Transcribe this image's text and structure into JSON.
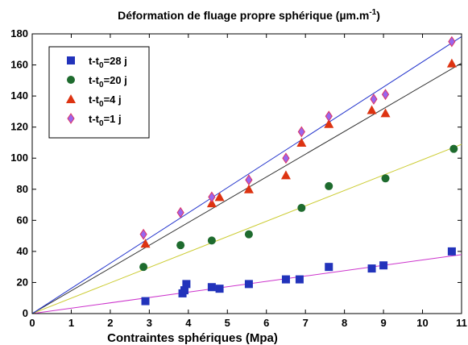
{
  "chart_data": {
    "type": "scatter",
    "title": "Déformation de fluage propre sphérique (µm.m",
    "title_sup": "-1",
    "title_end": ")",
    "xlabel": "Contraintes sphériques (Mpa)",
    "ylabel": "",
    "xlim": [
      0,
      11
    ],
    "ylim": [
      0,
      180
    ],
    "xticks": [
      "0",
      "1",
      "2",
      "3",
      "4",
      "5",
      "6",
      "7",
      "8",
      "9",
      "10",
      "11"
    ],
    "yticks": [
      "0",
      "20",
      "40",
      "60",
      "80",
      "100",
      "120",
      "140",
      "160",
      "180"
    ],
    "grid": false,
    "legend_position": "top-left",
    "series": [
      {
        "name": "t-t",
        "name_sub": "0",
        "name_end": "=28 j",
        "marker": "square",
        "color": "#2233bb",
        "x": [
          2.9,
          3.85,
          3.9,
          3.95,
          4.6,
          4.8,
          5.55,
          6.5,
          6.85,
          7.6,
          8.7,
          9.0,
          10.75
        ],
        "y": [
          8,
          13,
          15,
          19,
          17,
          16,
          19,
          22,
          22,
          30,
          29,
          31,
          40
        ],
        "fit": {
          "slope": 3.45,
          "color": "#cc33cc"
        }
      },
      {
        "name": "t-t",
        "name_sub": "0",
        "name_end": "=20 j",
        "marker": "circle",
        "color": "#1e6b2e",
        "x": [
          2.85,
          3.8,
          4.6,
          5.55,
          6.9,
          7.6,
          9.05,
          10.8
        ],
        "y": [
          30,
          44,
          47,
          51,
          68,
          82,
          87,
          106
        ],
        "fit": {
          "slope": 9.9,
          "color": "#cccc33"
        }
      },
      {
        "name": "t-t",
        "name_sub": "0",
        "name_end": "=4 j",
        "marker": "triangle",
        "color": "#dd3311",
        "x": [
          2.9,
          4.6,
          4.8,
          5.55,
          6.5,
          6.9,
          7.6,
          8.7,
          9.05,
          10.75
        ],
        "y": [
          45,
          71,
          75,
          80,
          89,
          110,
          122,
          131,
          129,
          161
        ],
        "fit": {
          "slope": 14.65,
          "color": "#333333"
        }
      },
      {
        "name": "t-t",
        "name_sub": "0",
        "name_end": "=1 j",
        "marker": "diamond",
        "color": "#9966ee",
        "x": [
          2.85,
          3.8,
          4.6,
          5.55,
          6.5,
          6.9,
          7.6,
          8.75,
          9.05,
          10.75
        ],
        "y": [
          51,
          65,
          75,
          86,
          100,
          117,
          127,
          138,
          141,
          175
        ],
        "fit": {
          "slope": 16.2,
          "color": "#2233cc"
        }
      }
    ]
  }
}
